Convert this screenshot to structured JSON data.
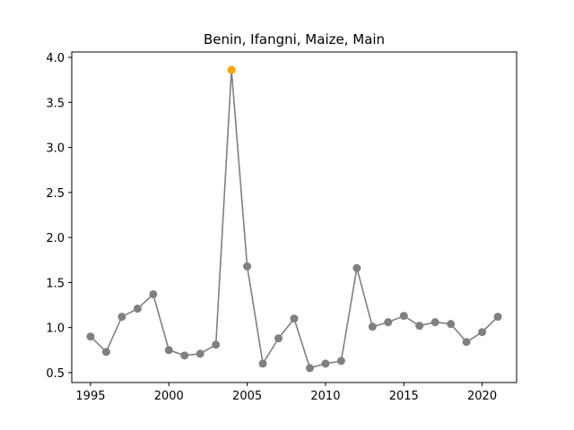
{
  "chart_data": {
    "type": "line",
    "title": "Benin, Ifangni, Maize, Main",
    "xlabel": "",
    "ylabel": "",
    "xlim": [
      1993.8,
      2022.2
    ],
    "ylim": [
      0.39,
      4.06
    ],
    "xticks": [
      1995,
      2000,
      2005,
      2010,
      2015,
      2020
    ],
    "yticks": [
      0.5,
      1.0,
      1.5,
      2.0,
      2.5,
      3.0,
      3.5,
      4.0
    ],
    "ytick_labels": [
      "0.5",
      "1.0",
      "1.5",
      "2.0",
      "2.5",
      "3.0",
      "3.5",
      "4.0"
    ],
    "grid": false,
    "series": [
      {
        "color": "#808080",
        "x": [
          1995,
          1996,
          1997,
          1998,
          1999,
          2000,
          2001,
          2002,
          2003,
          2004,
          2005,
          2006,
          2007,
          2008,
          2009,
          2010,
          2011,
          2012,
          2013,
          2014,
          2015,
          2016,
          2017,
          2018,
          2019,
          2020,
          2021
        ],
        "values": [
          0.9,
          0.73,
          1.12,
          1.21,
          1.37,
          0.75,
          0.69,
          0.71,
          0.81,
          3.86,
          1.68,
          0.6,
          0.88,
          1.1,
          0.55,
          0.6,
          0.63,
          1.66,
          1.01,
          1.06,
          1.13,
          1.02,
          1.06,
          1.04,
          0.84,
          0.95,
          1.12
        ]
      }
    ],
    "highlight": {
      "x": 2004,
      "value": 3.86,
      "color": "#ffa500"
    }
  }
}
